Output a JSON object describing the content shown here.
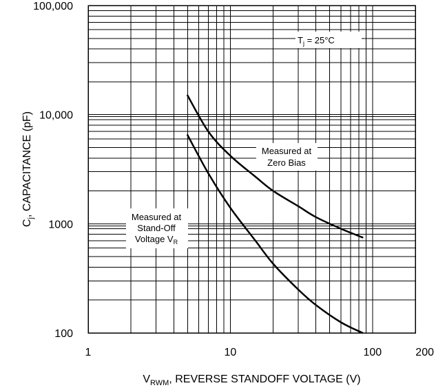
{
  "chart_data": {
    "type": "line",
    "title": "",
    "xlabel": "V",
    "xlabel_sub": "RWM",
    "xlabel_rest": ", REVERSE STANDOFF VOLTAGE (V)",
    "ylabel": "C",
    "ylabel_sub": "j",
    "ylabel_rest": ", CAPACITANCE (pF)",
    "xscale": "log",
    "yscale": "log",
    "xlim": [
      1,
      200
    ],
    "ylim": [
      100,
      100000
    ],
    "x_ticks": [
      {
        "value": 1,
        "label": "1"
      },
      {
        "value": 10,
        "label": "10"
      },
      {
        "value": 100,
        "label": "100"
      },
      {
        "value": 200,
        "label": "200"
      }
    ],
    "y_ticks": [
      {
        "value": 100,
        "label": "100"
      },
      {
        "value": 1000,
        "label": "1000"
      },
      {
        "value": 10000,
        "label": "10,000"
      },
      {
        "value": 100000,
        "label": "100,000"
      }
    ],
    "grid": true,
    "series": [
      {
        "x": [
          5,
          7,
          10,
          15,
          20,
          30,
          40,
          60,
          85
        ],
        "y": [
          15000,
          7000,
          4200,
          2700,
          2000,
          1450,
          1150,
          900,
          750
        ]
      },
      {
        "x": [
          5,
          7,
          10,
          15,
          20,
          30,
          40,
          60,
          85
        ],
        "y": [
          6500,
          2900,
          1400,
          700,
          430,
          250,
          180,
          125,
          100
        ]
      }
    ],
    "annotations": [
      {
        "id": "temp",
        "pieces": [
          {
            "text": "T",
            "style": "normal"
          },
          {
            "text": "j",
            "style": "sub"
          },
          {
            "text": " = 25°C",
            "style": "normal"
          }
        ]
      },
      {
        "id": "zero-bias",
        "lines": [
          "Measured at",
          "Zero Bias"
        ]
      },
      {
        "id": "standoff",
        "lines": [
          "Measured at",
          "Stand-Off"
        ],
        "last_line_pieces": [
          {
            "text": "Voltage V",
            "style": "normal"
          },
          {
            "text": "R",
            "style": "sub"
          }
        ]
      }
    ]
  }
}
